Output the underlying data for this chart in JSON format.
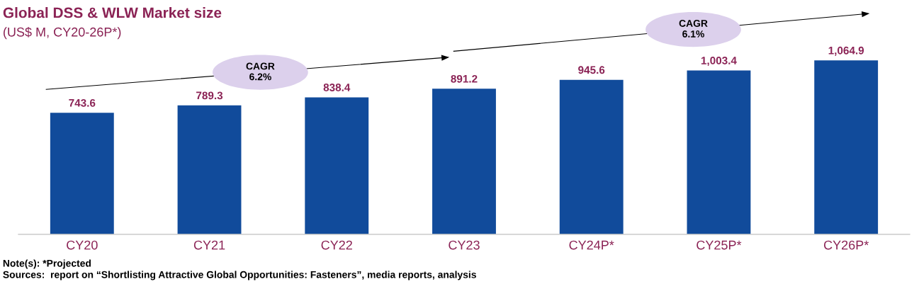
{
  "chart_data": {
    "type": "bar",
    "title": "Global DSS & WLW Market size",
    "subtitle": "(US$ M, CY20-26P*)",
    "categories": [
      "CY20",
      "CY21",
      "CY22",
      "CY23",
      "CY24P*",
      "CY25P*",
      "CY26P*"
    ],
    "values": [
      743.6,
      789.3,
      838.4,
      891.2,
      945.6,
      1003.4,
      1064.9
    ],
    "value_labels": [
      "743.6",
      "789.3",
      "838.4",
      "891.2",
      "945.6",
      "1,003.4",
      "1,064.9"
    ],
    "color": "#114b9b",
    "annotations": [
      "CAGR\n6.2%",
      "CAGR\n6.1%",
      "Note(s): *Projected",
      "Sources:  report on “Shortlisting Attractive Global Opportunities: Fasteners”, media reports, analysis"
    ],
    "grid": false,
    "legend": false
  }
}
